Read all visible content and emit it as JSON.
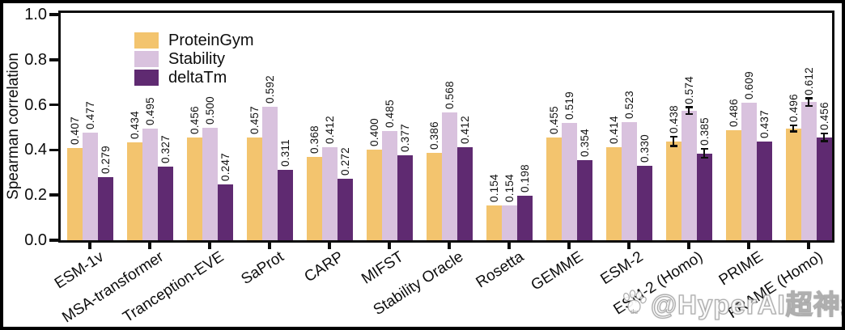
{
  "y_axis": {
    "label": "Spearman correlation",
    "tick_labels": [
      "0.0",
      "0.2",
      "0.4",
      "0.6",
      "0.8",
      "1.0"
    ]
  },
  "chart_data": {
    "type": "bar",
    "title": "",
    "xlabel": "",
    "ylabel": "Spearman correlation",
    "ylim": [
      0,
      1.0
    ],
    "yticks": [
      0,
      0.2,
      0.4,
      0.6,
      0.8,
      1.0
    ],
    "grid": false,
    "legend_position": "upper-left",
    "value_label_format": "3-decimals, rotated 90deg above bar",
    "categories": [
      "ESM-1v",
      "MSA-transformer",
      "Tranception-EVE",
      "SaProt",
      "CARP",
      "MIFST",
      "Stability Oracle",
      "Rosetta",
      "GEMME",
      "ESM-2",
      "ESM-2 (Homo)",
      "PRIME",
      "FRAME (Homo)"
    ],
    "series": [
      {
        "name": "ProteinGym",
        "color": "#f3c46e",
        "values": [
          0.407,
          0.434,
          0.456,
          0.457,
          0.368,
          0.4,
          0.386,
          0.154,
          0.455,
          0.414,
          0.438,
          0.486,
          0.496
        ],
        "errors": [
          0,
          0,
          0,
          0,
          0,
          0,
          0,
          0,
          0,
          0,
          0.02,
          0,
          0.013
        ]
      },
      {
        "name": "Stability",
        "color": "#d9c2de",
        "values": [
          0.477,
          0.495,
          0.5,
          0.592,
          0.412,
          0.485,
          0.568,
          0.154,
          0.519,
          0.523,
          0.574,
          0.609,
          0.612
        ],
        "errors": [
          0,
          0,
          0,
          0,
          0,
          0,
          0,
          0,
          0,
          0,
          0.015,
          0,
          0.017
        ]
      },
      {
        "name": "deltaTm",
        "color": "#5f2a71",
        "values": [
          0.279,
          0.327,
          0.247,
          0.311,
          0.272,
          0.377,
          0.412,
          0.198,
          0.354,
          0.33,
          0.385,
          0.437,
          0.456
        ],
        "errors": [
          0,
          0,
          0,
          0,
          0,
          0,
          0,
          0,
          0,
          0,
          0.02,
          0,
          0.017
        ]
      }
    ]
  },
  "watermark": {
    "text": "@HyperAI超神经",
    "icon": "paw-badge",
    "icon_label": "du"
  }
}
